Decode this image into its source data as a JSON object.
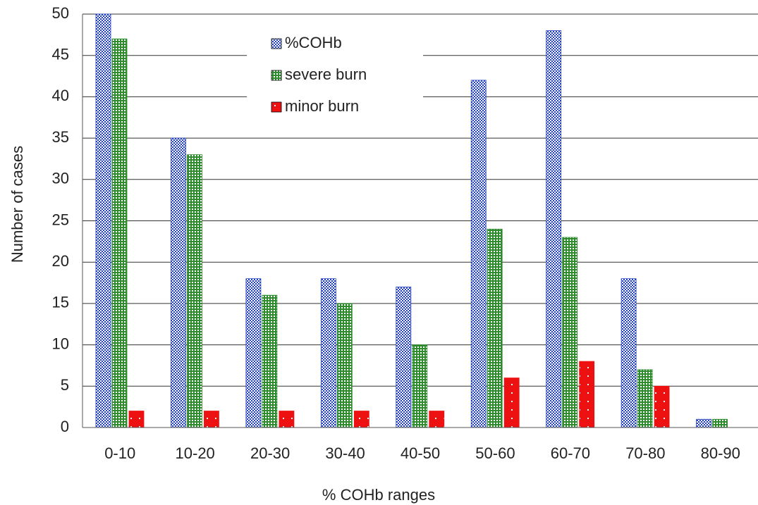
{
  "chart_data": {
    "type": "bar",
    "x_label": "% COHb ranges",
    "y_label": "Number of cases",
    "categories": [
      "0-10",
      "10-20",
      "20-30",
      "30-40",
      "40-50",
      "50-60",
      "60-70",
      "70-80",
      "80-90"
    ],
    "series": [
      {
        "name": "%COHb",
        "color": "#1f3fbf",
        "values": [
          50,
          35,
          18,
          18,
          17,
          42,
          48,
          18,
          1
        ]
      },
      {
        "name": "severe burn",
        "color": "#2e8b2e",
        "values": [
          47,
          33,
          16,
          15,
          10,
          24,
          23,
          7,
          1
        ]
      },
      {
        "name": "minor burn",
        "color": "#ee1111",
        "values": [
          2,
          2,
          2,
          2,
          2,
          6,
          8,
          5,
          0
        ]
      }
    ],
    "ylim": [
      0,
      50
    ],
    "yticks": [
      0,
      5,
      10,
      15,
      20,
      25,
      30,
      35,
      40,
      45,
      50
    ],
    "grid": true
  }
}
